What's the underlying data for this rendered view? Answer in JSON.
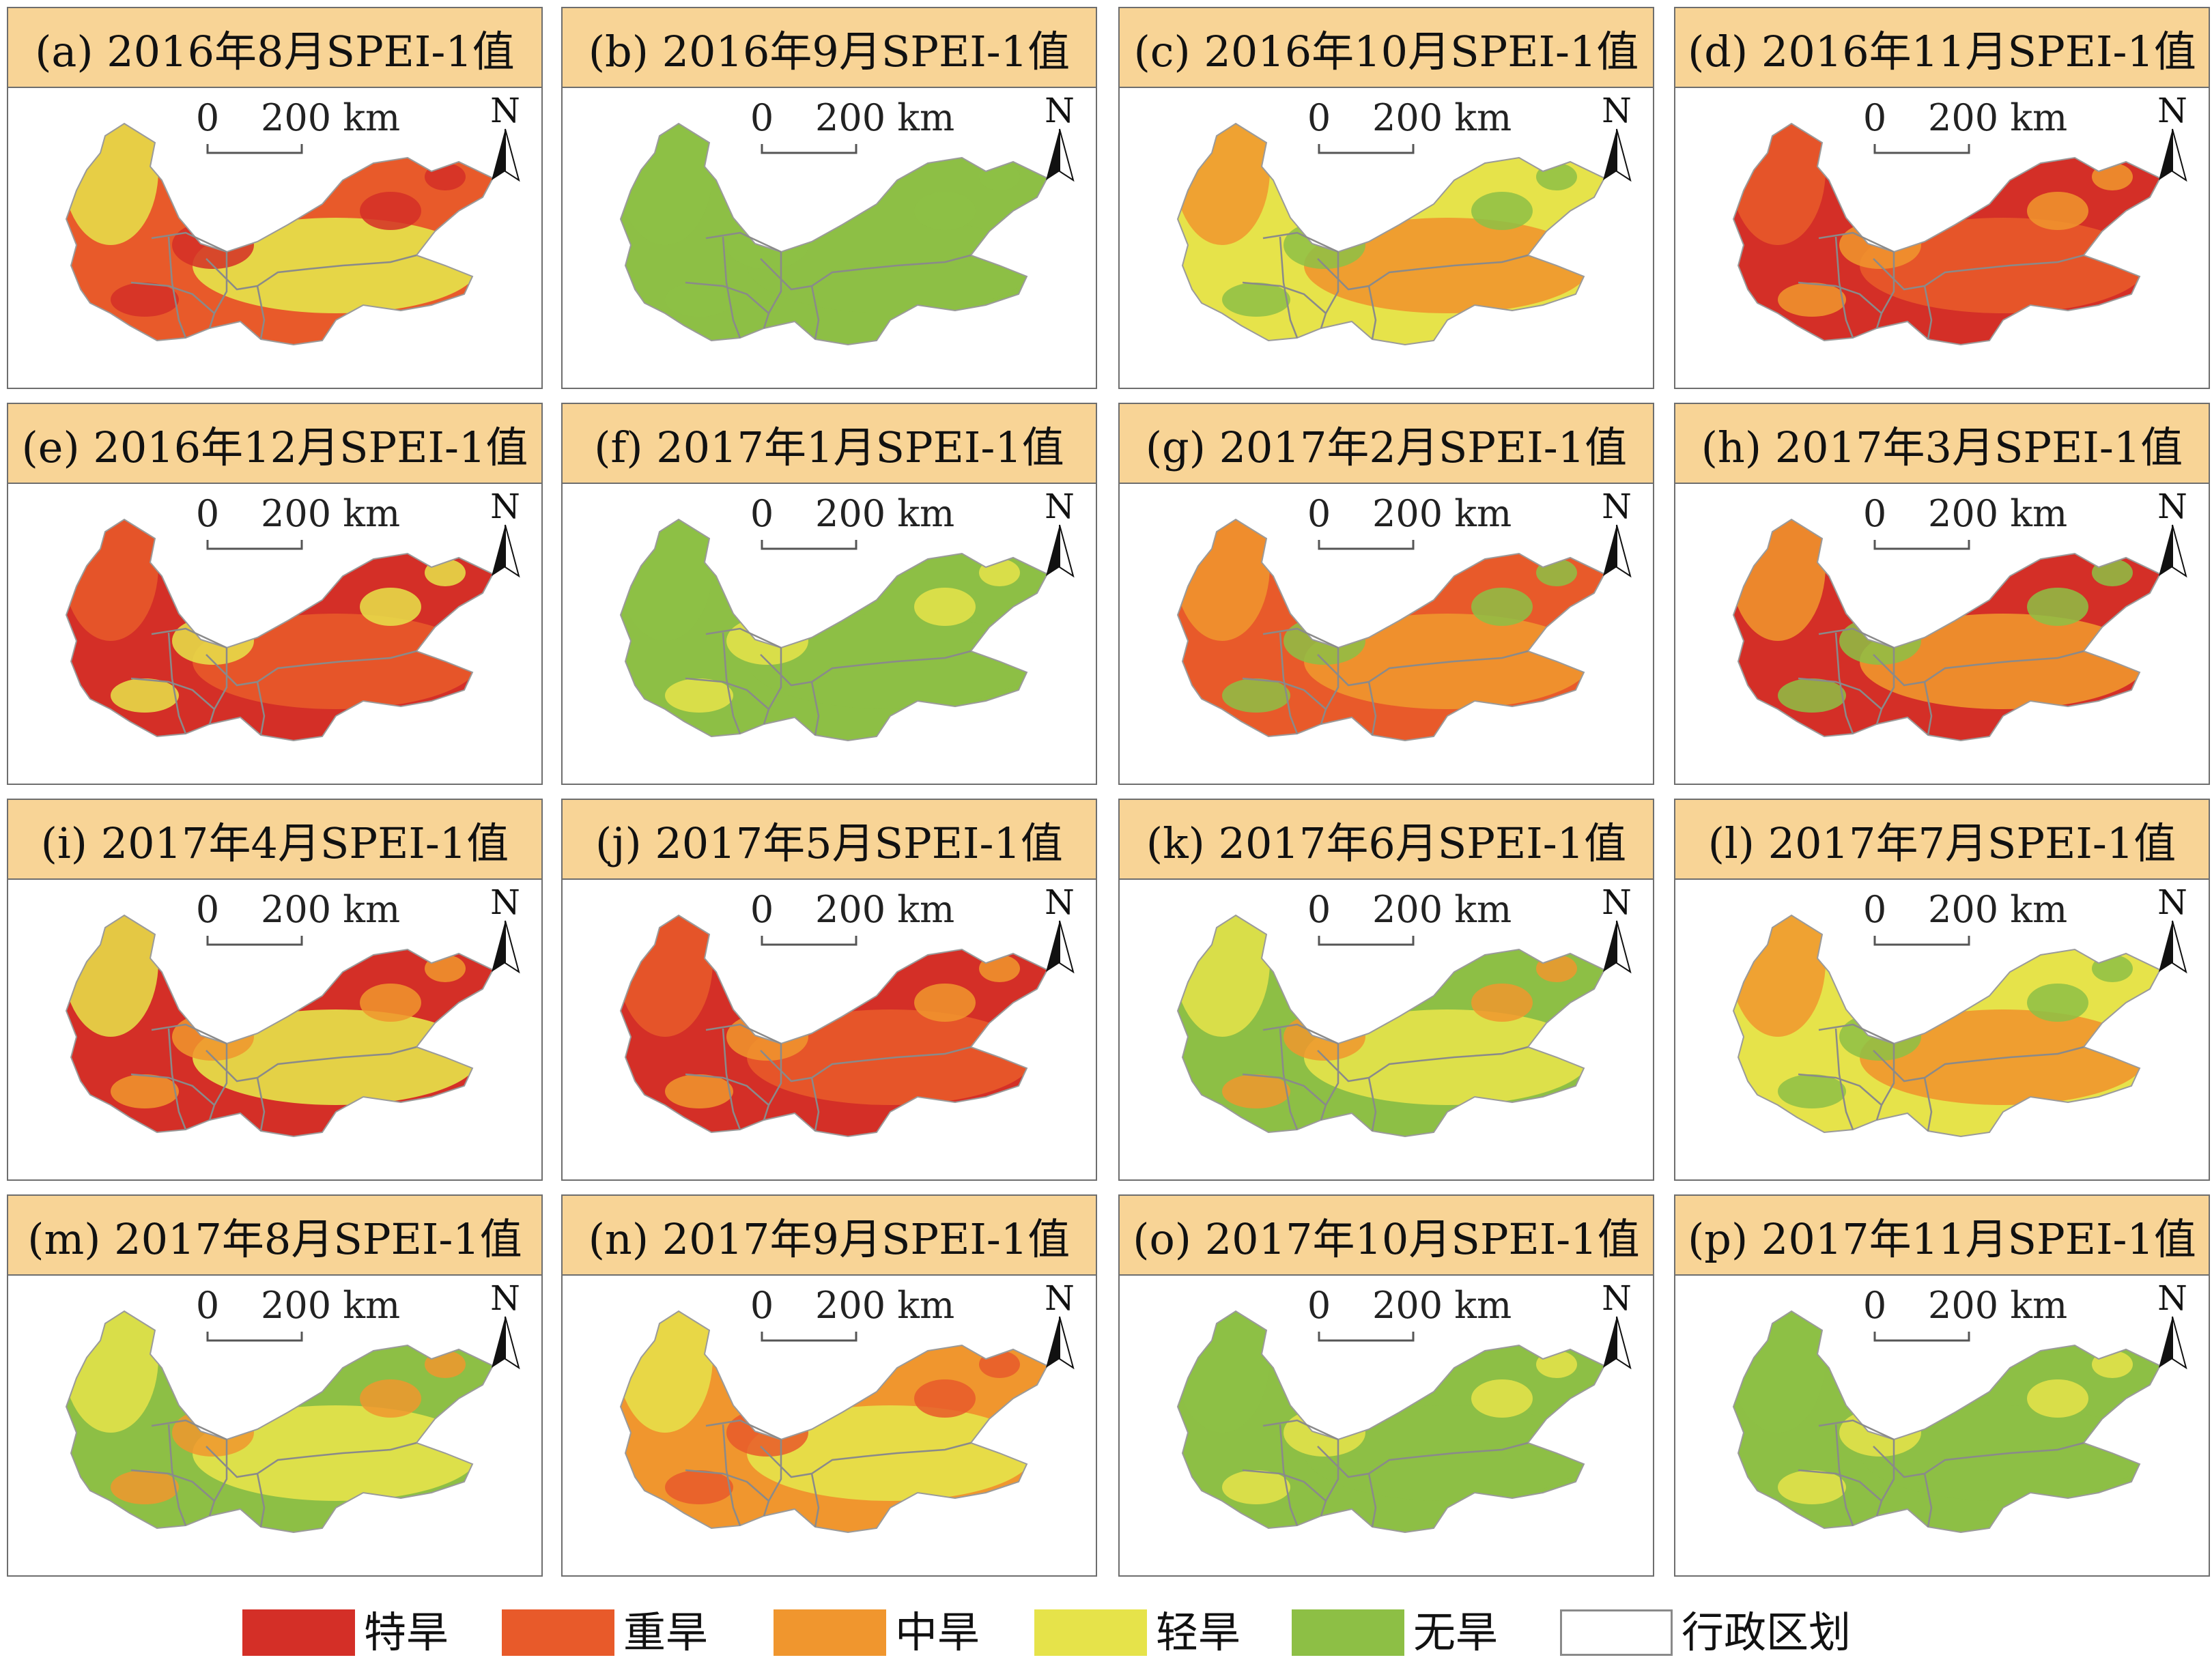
{
  "colors": {
    "extreme": "#d42f27",
    "severe": "#e85a2a",
    "moderate": "#f0962e",
    "light": "#e6e34a",
    "none": "#8dbf45",
    "boundary": "#8a8a8a",
    "title_bg": "#f8d496"
  },
  "scale_bar": {
    "zero": "0",
    "label": "200 km"
  },
  "north_arrow": {
    "letter": "N",
    "icon": "north-arrow-icon"
  },
  "panels": [
    {
      "title": "(a) 2016年8月SPEI-1值",
      "dominant": "severe",
      "secondary": "light",
      "spots": "extreme"
    },
    {
      "title": "(b) 2016年9月SPEI-1值",
      "dominant": "none",
      "secondary": "none",
      "spots": "none"
    },
    {
      "title": "(c) 2016年10月SPEI-1值",
      "dominant": "light",
      "secondary": "moderate",
      "spots": "none"
    },
    {
      "title": "(d) 2016年11月SPEI-1值",
      "dominant": "extreme",
      "secondary": "severe",
      "spots": "moderate"
    },
    {
      "title": "(e) 2016年12月SPEI-1值",
      "dominant": "extreme",
      "secondary": "severe",
      "spots": "light"
    },
    {
      "title": "(f) 2017年1月SPEI-1值",
      "dominant": "none",
      "secondary": "none",
      "spots": "light"
    },
    {
      "title": "(g) 2017年2月SPEI-1值",
      "dominant": "severe",
      "secondary": "moderate",
      "spots": "none"
    },
    {
      "title": "(h) 2017年3月SPEI-1值",
      "dominant": "extreme",
      "secondary": "moderate",
      "spots": "none"
    },
    {
      "title": "(i) 2017年4月SPEI-1值",
      "dominant": "extreme",
      "secondary": "light",
      "spots": "moderate"
    },
    {
      "title": "(j) 2017年5月SPEI-1值",
      "dominant": "extreme",
      "secondary": "severe",
      "spots": "moderate"
    },
    {
      "title": "(k) 2017年6月SPEI-1值",
      "dominant": "none",
      "secondary": "light",
      "spots": "moderate"
    },
    {
      "title": "(l) 2017年7月SPEI-1值",
      "dominant": "light",
      "secondary": "moderate",
      "spots": "none"
    },
    {
      "title": "(m) 2017年8月SPEI-1值",
      "dominant": "none",
      "secondary": "light",
      "spots": "moderate"
    },
    {
      "title": "(n) 2017年9月SPEI-1值",
      "dominant": "moderate",
      "secondary": "light",
      "spots": "severe"
    },
    {
      "title": "(o) 2017年10月SPEI-1值",
      "dominant": "none",
      "secondary": "none",
      "spots": "light"
    },
    {
      "title": "(p) 2017年11月SPEI-1值",
      "dominant": "none",
      "secondary": "none",
      "spots": "light"
    }
  ],
  "legend": [
    {
      "key": "extreme",
      "label": "特旱"
    },
    {
      "key": "severe",
      "label": "重旱"
    },
    {
      "key": "moderate",
      "label": "中旱"
    },
    {
      "key": "light",
      "label": "轻旱"
    },
    {
      "key": "none",
      "label": "无旱"
    },
    {
      "key": "boundary",
      "label": "行政区划"
    }
  ]
}
